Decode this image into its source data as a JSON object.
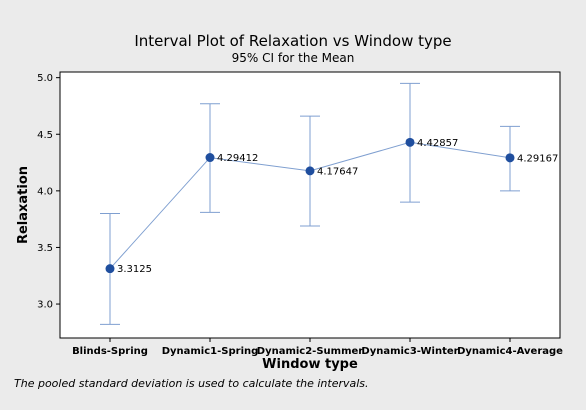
{
  "chart_data": {
    "type": "interval",
    "title": "Interval Plot of Relaxation vs Window type",
    "subtitle": "95% CI for the Mean",
    "xlabel": "Window type",
    "ylabel": "Relaxation",
    "ylim": [
      2.7,
      5.05
    ],
    "yticks": [
      "3.0",
      "3.5",
      "4.0",
      "4.5",
      "5.0"
    ],
    "ytick_values": [
      3.0,
      3.5,
      4.0,
      4.5,
      5.0
    ],
    "categories": [
      "Blinds-Spring",
      "Dynamic1-Spring",
      "Dynamic2-Summer",
      "Dynamic3-Winter",
      "Dynamic4-Average"
    ],
    "means": [
      3.3125,
      4.29412,
      4.17647,
      4.42857,
      4.29167
    ],
    "mean_labels": [
      "3.3125",
      "4.29412",
      "4.17647",
      "4.42857",
      "4.29167"
    ],
    "ci_lower": [
      2.82,
      3.81,
      3.69,
      3.9,
      4.0
    ],
    "ci_upper": [
      3.8,
      4.77,
      4.66,
      4.95,
      4.57
    ],
    "grid": false,
    "colors": {
      "marker": "#1f4e9e",
      "interval": "#7f9fd0",
      "background": "#ebebeb",
      "plot_background": "#ffffff",
      "axis": "#000000"
    }
  },
  "footnote": "The pooled standard deviation is used to calculate the intervals."
}
